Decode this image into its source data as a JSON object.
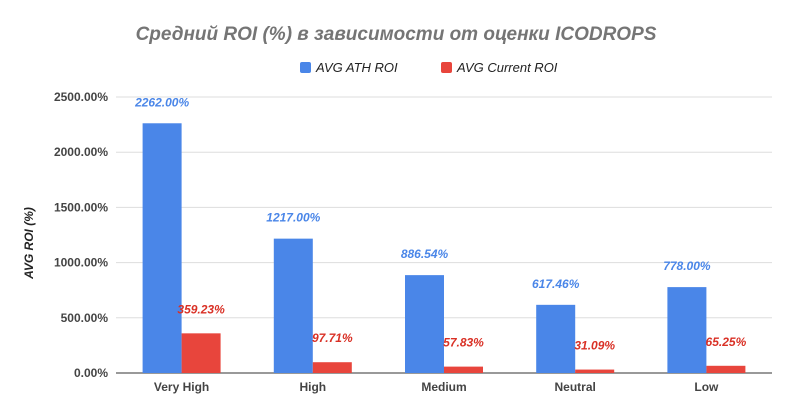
{
  "chart_data": {
    "type": "bar",
    "title": "Средний ROI (%) в зависимости от оценки ICODROPS",
    "xlabel": "",
    "ylabel": "AVG ROI (%)",
    "ylim": [
      0,
      2500
    ],
    "yticks": [
      0,
      500,
      1000,
      1500,
      2000,
      2500
    ],
    "ytick_labels": [
      "0.00%",
      "500.00%",
      "1000.00%",
      "1500.00%",
      "2000.00%",
      "2500.00%"
    ],
    "grid": true,
    "legend_position": "top-center",
    "categories": [
      "Very High",
      "High",
      "Medium",
      "Neutral",
      "Low"
    ],
    "series": [
      {
        "name": "AVG ATH ROI",
        "color": "#4a86e8",
        "label_color": "#4a86e8",
        "values": [
          2262.0,
          1217.0,
          886.54,
          617.46,
          778.0
        ],
        "labels": [
          "2262.00%",
          "1217.00%",
          "886.54%",
          "617.46%",
          "778.00%"
        ]
      },
      {
        "name": "AVG Current ROI",
        "color": "#e8453c",
        "label_color": "#d93025",
        "values": [
          359.23,
          97.71,
          57.83,
          31.09,
          65.25
        ],
        "labels": [
          "359.23%",
          "97.71%",
          "57.83%",
          "31.09%",
          "65.25%"
        ]
      }
    ]
  }
}
